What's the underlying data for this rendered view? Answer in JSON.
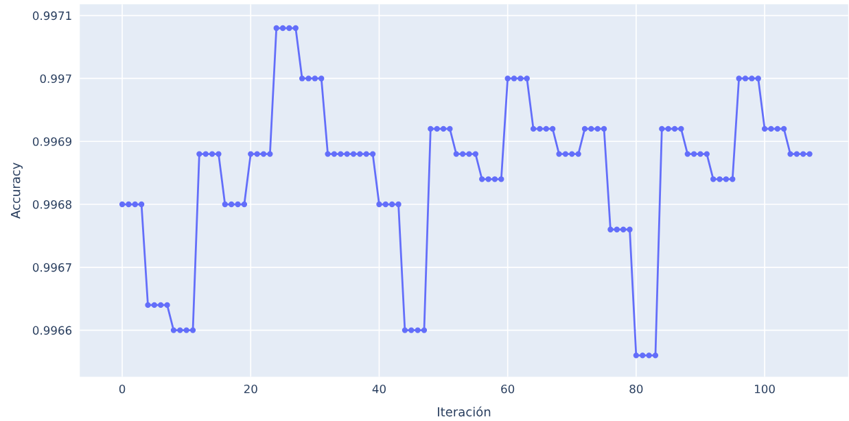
{
  "chart_data": {
    "type": "line",
    "xlabel": "Iteración",
    "ylabel": "Accuracy",
    "x": [
      0,
      1,
      2,
      3,
      4,
      5,
      6,
      7,
      8,
      9,
      10,
      11,
      12,
      13,
      14,
      15,
      16,
      17,
      18,
      19,
      20,
      21,
      22,
      23,
      24,
      25,
      26,
      27,
      28,
      29,
      30,
      31,
      32,
      33,
      34,
      35,
      36,
      37,
      38,
      39,
      40,
      41,
      42,
      43,
      44,
      45,
      46,
      47,
      48,
      49,
      50,
      51,
      52,
      53,
      54,
      55,
      56,
      57,
      58,
      59,
      60,
      61,
      62,
      63,
      64,
      65,
      66,
      67,
      68,
      69,
      70,
      71,
      72,
      73,
      74,
      75,
      76,
      77,
      78,
      79,
      80,
      81,
      82,
      83,
      84,
      85,
      86,
      87,
      88,
      89,
      90,
      91,
      92,
      93,
      94,
      95,
      96,
      97,
      98,
      99,
      100,
      101,
      102,
      103,
      104,
      105,
      106,
      107
    ],
    "series": [
      {
        "color": "#636efa",
        "values": [
          0.9968,
          0.9968,
          0.9968,
          0.9968,
          0.99664,
          0.99664,
          0.99664,
          0.99664,
          0.9966,
          0.9966,
          0.9966,
          0.9966,
          0.99688,
          0.99688,
          0.99688,
          0.99688,
          0.9968,
          0.9968,
          0.9968,
          0.9968,
          0.99688,
          0.99688,
          0.99688,
          0.99688,
          0.99708,
          0.99708,
          0.99708,
          0.99708,
          0.997,
          0.997,
          0.997,
          0.997,
          0.99688,
          0.99688,
          0.99688,
          0.99688,
          0.99688,
          0.99688,
          0.99688,
          0.99688,
          0.9968,
          0.9968,
          0.9968,
          0.9968,
          0.9966,
          0.9966,
          0.9966,
          0.9966,
          0.99692,
          0.99692,
          0.99692,
          0.99692,
          0.99688,
          0.99688,
          0.99688,
          0.99688,
          0.99684,
          0.99684,
          0.99684,
          0.99684,
          0.997,
          0.997,
          0.997,
          0.997,
          0.99692,
          0.99692,
          0.99692,
          0.99692,
          0.99688,
          0.99688,
          0.99688,
          0.99688,
          0.99692,
          0.99692,
          0.99692,
          0.99692,
          0.99676,
          0.99676,
          0.99676,
          0.99676,
          0.99656,
          0.99656,
          0.99656,
          0.99656,
          0.99692,
          0.99692,
          0.99692,
          0.99692,
          0.99688,
          0.99688,
          0.99688,
          0.99688,
          0.99684,
          0.99684,
          0.99684,
          0.99684,
          0.997,
          0.997,
          0.997,
          0.997,
          0.99692,
          0.99692,
          0.99692,
          0.99692,
          0.99688,
          0.99688,
          0.99688,
          0.99688
        ]
      }
    ],
    "xlim": [
      -6.6,
      113
    ],
    "xticks": [
      0,
      20,
      40,
      60,
      80,
      100
    ],
    "ylim": [
      0.996526,
      0.997118
    ],
    "yticks": [
      0.9966,
      0.9967,
      0.9968,
      0.9969,
      0.997,
      0.9971
    ],
    "grid": true,
    "marker": "circle",
    "line_style": "solid",
    "legend": false
  }
}
